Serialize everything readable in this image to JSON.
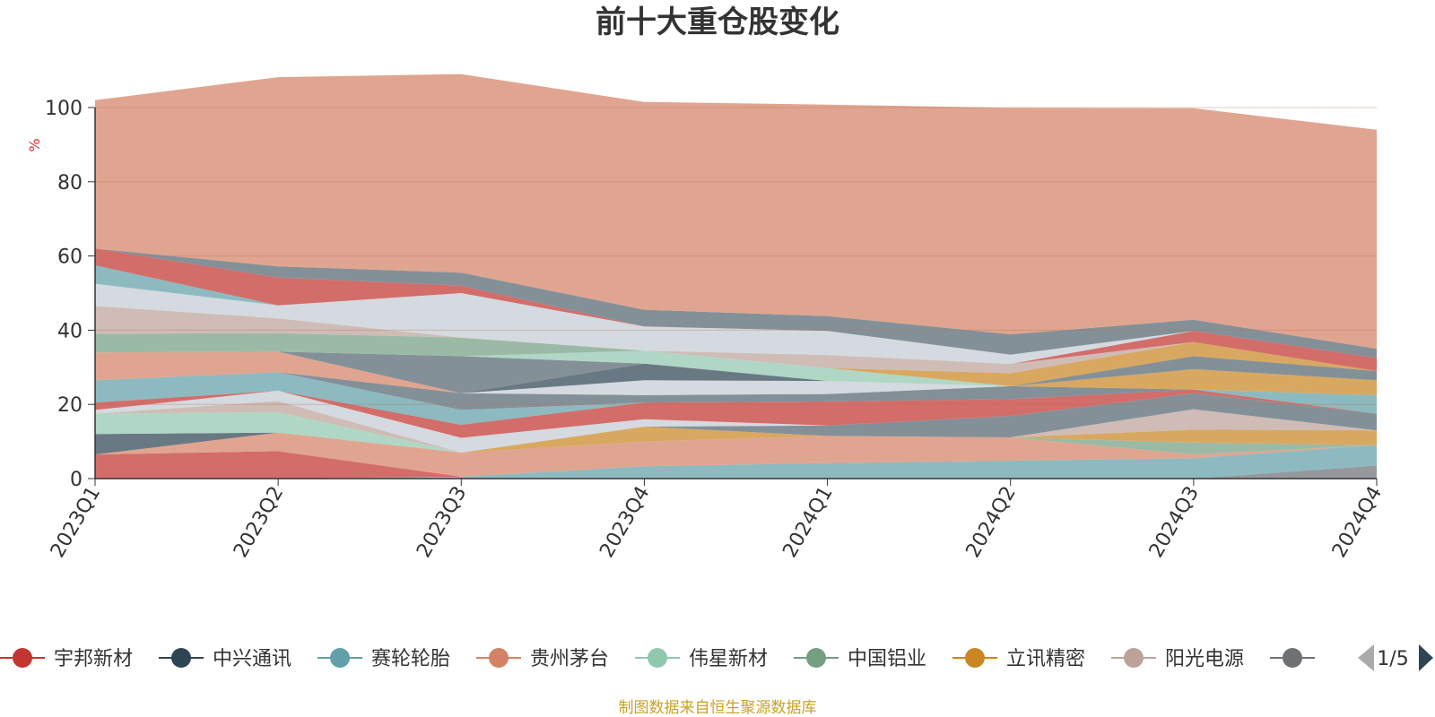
{
  "chart_data": {
    "type": "area",
    "stacked": true,
    "title": "前十大重仓股变化",
    "ylabel": "%",
    "ylim": [
      0,
      100
    ],
    "yticks": [
      0,
      20,
      40,
      60,
      80,
      100
    ],
    "grid": true,
    "categories": [
      "2023Q1",
      "2023Q2",
      "2023Q3",
      "2023Q4",
      "2024Q1",
      "2024Q2",
      "2024Q3",
      "2024Q4"
    ],
    "series": [
      {
        "name": "",
        "color": "#6e7074",
        "values": [
          0,
          0,
          0,
          0,
          0,
          0,
          0,
          3.5
        ]
      },
      {
        "name": "赛轮轮胎",
        "color": "#61a0a8",
        "values": [
          0,
          0,
          0.5,
          3.3,
          4.2,
          4.8,
          5.5,
          5.5
        ]
      },
      {
        "name": "宇邦新材",
        "color": "#c23531",
        "values": [
          6.5,
          7.4,
          0,
          0,
          0,
          0,
          0,
          0
        ]
      },
      {
        "name": "贵州茅台",
        "color": "#d48265",
        "values": [
          0,
          5,
          6.5,
          6.7,
          7.3,
          6.3,
          1,
          0
        ]
      },
      {
        "name": "中国铝业",
        "color": "#749f83",
        "values": [
          0,
          0,
          0,
          0,
          0,
          0,
          3.2,
          0
        ]
      },
      {
        "name": "立讯精密",
        "color": "#ca8622",
        "values": [
          0,
          0,
          0,
          4,
          0,
          0,
          3.5,
          4
        ]
      },
      {
        "name": "中兴通讯",
        "color": "#2f4554",
        "values": [
          5.5,
          0,
          0,
          0,
          0,
          0,
          0,
          0
        ]
      },
      {
        "name": "伟星新材",
        "color": "#91c7ae",
        "values": [
          5.5,
          5.5,
          0,
          0,
          0,
          0,
          0,
          0
        ]
      },
      {
        "name": "阳光电源",
        "color": "#bda29a",
        "values": [
          0,
          3,
          0,
          0,
          0,
          0,
          5.5,
          0
        ]
      },
      {
        "name": "",
        "color": "#546570",
        "values": [
          0,
          0,
          0,
          0,
          2.8,
          5.8,
          4.3,
          4.5
        ]
      },
      {
        "name": "",
        "color": "#c4ccd3",
        "values": [
          1,
          2.8,
          4,
          2,
          0,
          0,
          0,
          0
        ]
      },
      {
        "name": "",
        "color": "#c23531",
        "values": [
          2,
          0,
          3.5,
          4.5,
          6.5,
          4.5,
          1,
          0
        ]
      },
      {
        "name": "",
        "color": "#61a0a8",
        "values": [
          6,
          5,
          4,
          0,
          0,
          0,
          0,
          5
        ]
      },
      {
        "name": "",
        "color": "#546570",
        "values": [
          0,
          0,
          4.5,
          2,
          2,
          3.5,
          0,
          0
        ]
      },
      {
        "name": "",
        "color": "#c4ccd3",
        "values": [
          0,
          0,
          0,
          4,
          3.5,
          0,
          0,
          0
        ]
      },
      {
        "name": "",
        "color": "#ca8622",
        "values": [
          0,
          0,
          0,
          0,
          0,
          0,
          5.5,
          4
        ]
      },
      {
        "name": "",
        "color": "#d48265",
        "values": [
          7.5,
          5.5,
          0,
          0,
          0,
          0,
          0,
          0
        ]
      },
      {
        "name": "",
        "color": "#2f4554",
        "values": [
          0,
          0,
          0,
          4.5,
          0,
          0,
          0,
          0
        ]
      },
      {
        "name": "",
        "color": "#546570",
        "values": [
          0,
          0,
          10,
          0,
          0,
          0,
          3.5,
          2.5
        ]
      },
      {
        "name": "",
        "color": "#91c7ae",
        "values": [
          0,
          0,
          0,
          3.5,
          3.5,
          0,
          0,
          0
        ]
      },
      {
        "name": "",
        "color": "#749f83",
        "values": [
          5,
          5,
          5,
          0,
          0,
          0,
          0,
          0
        ]
      },
      {
        "name": "",
        "color": "#ca8622",
        "values": [
          0,
          0,
          0,
          0,
          0,
          3.5,
          3.8,
          0
        ]
      },
      {
        "name": "",
        "color": "#bda29a",
        "values": [
          7.5,
          4,
          0,
          0,
          3.5,
          2.5,
          0,
          0
        ]
      },
      {
        "name": "",
        "color": "#c23531",
        "values": [
          0,
          0,
          0,
          0,
          0,
          0,
          3,
          3.5
        ]
      },
      {
        "name": "",
        "color": "#c4ccd3",
        "values": [
          6,
          3.5,
          12,
          6.5,
          6.5,
          2.5,
          0,
          0
        ]
      },
      {
        "name": "",
        "color": "#61a0a8",
        "values": [
          5,
          0,
          0,
          0,
          0,
          0,
          0,
          0
        ]
      },
      {
        "name": "",
        "color": "#c23531",
        "values": [
          4.5,
          7.5,
          2,
          0,
          0,
          0,
          0,
          0
        ]
      },
      {
        "name": "",
        "color": "#546570",
        "values": [
          0,
          3,
          3.5,
          4.5,
          4,
          5.5,
          3,
          2.5
        ]
      },
      {
        "name": "",
        "color": "#d48265",
        "values": [
          40,
          51,
          53.5,
          56,
          57,
          61,
          57,
          59
        ]
      }
    ]
  },
  "legend": {
    "items": [
      {
        "label": "宇邦新材",
        "color": "#c23531"
      },
      {
        "label": "中兴通讯",
        "color": "#2f4554"
      },
      {
        "label": "赛轮轮胎",
        "color": "#61a0a8"
      },
      {
        "label": "贵州茅台",
        "color": "#d48265"
      },
      {
        "label": "伟星新材",
        "color": "#91c7ae"
      },
      {
        "label": "中国铝业",
        "color": "#749f83"
      },
      {
        "label": "立讯精密",
        "color": "#ca8622"
      },
      {
        "label": "阳光电源",
        "color": "#bda29a"
      },
      {
        "label": "",
        "color": "#6e7074"
      }
    ],
    "page": "1/5",
    "prev_icon": "triangle-left-icon",
    "next_icon": "triangle-right-icon"
  },
  "footer": {
    "source": "制图数据来自恒生聚源数据库"
  }
}
